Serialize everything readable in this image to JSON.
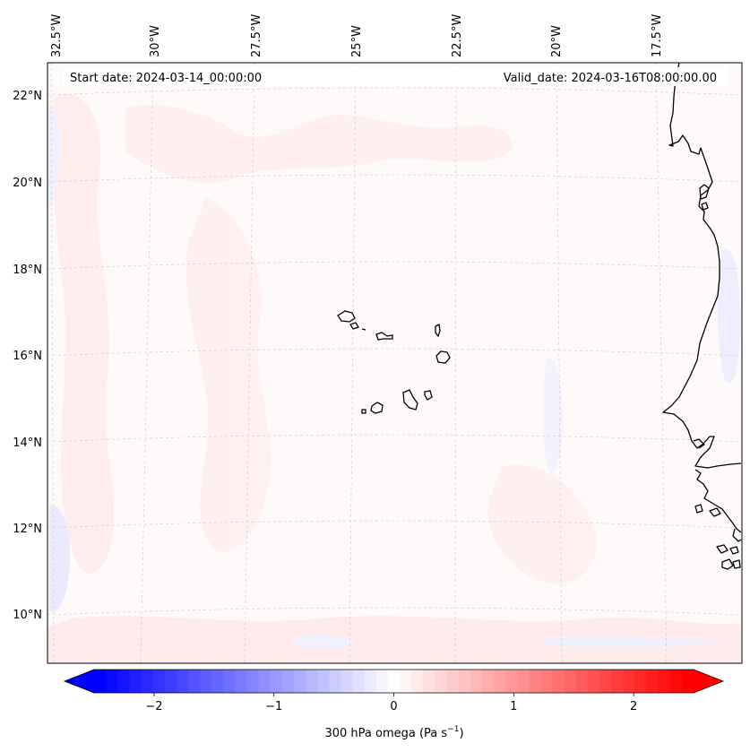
{
  "header": {
    "start_date": "Start date: 2024-03-14_00:00:00",
    "valid_date": "Valid_date: 2024-03-16T08:00:00.00"
  },
  "map": {
    "lon_ticks": [
      "32.5°W",
      "30°W",
      "27.5°W",
      "25°W",
      "22.5°W",
      "20°W",
      "17.5°W"
    ],
    "lat_ticks": [
      "22°N",
      "20°N",
      "18°N",
      "16°N",
      "14°N",
      "12°N",
      "10°N"
    ],
    "extent": {
      "lon_min": -33.0,
      "lon_max": -15.8,
      "lat_min": 8.9,
      "lat_max": 22.8
    },
    "field_colors": {
      "positive": "#ffe4e4",
      "negative": "#e6e6ff",
      "neutral": "#fffafa"
    },
    "coastline_color": "#000000",
    "gridline_color": "#c8c8c8"
  },
  "colorbar": {
    "label": "300 hPa omega (Pa s",
    "label_sup": "−1",
    "label_end": ")",
    "ticks": [
      "−2",
      "−1",
      "0",
      "1",
      "2"
    ],
    "tick_values": [
      -2,
      -1,
      0,
      1,
      2
    ],
    "vmin": -2.5,
    "vmax": 2.5,
    "levels": 51,
    "colormap": "bwr",
    "min_color": "#0000ff",
    "mid_color": "#ffffff",
    "max_color": "#ff0000"
  }
}
